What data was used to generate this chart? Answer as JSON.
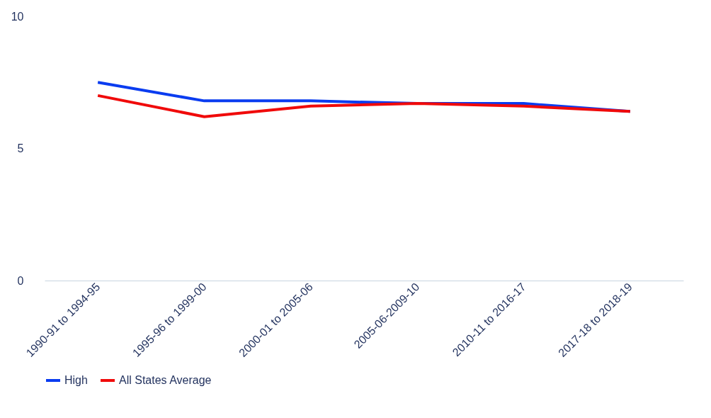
{
  "chart_data": {
    "type": "line",
    "categories": [
      "1990-91 to 1994-95",
      "1995-96 to 1999-00",
      "2000-01 to 2005-06",
      "2005-06-2009-10",
      "2010-11 to 2016-17",
      "2017-18 to 2018-19"
    ],
    "series": [
      {
        "name": "High",
        "color": "#0a3cf0",
        "values": [
          7.5,
          6.8,
          6.8,
          6.7,
          6.7,
          6.4
        ]
      },
      {
        "name": "All States Average",
        "color": "#f00a0a",
        "values": [
          7.0,
          6.2,
          6.6,
          6.7,
          6.6,
          6.4
        ]
      }
    ],
    "ylim": [
      0,
      10
    ],
    "yticks": [
      0,
      5,
      10
    ],
    "grid": false,
    "legend": "bottom",
    "marker": "none",
    "line_style": "solid"
  }
}
